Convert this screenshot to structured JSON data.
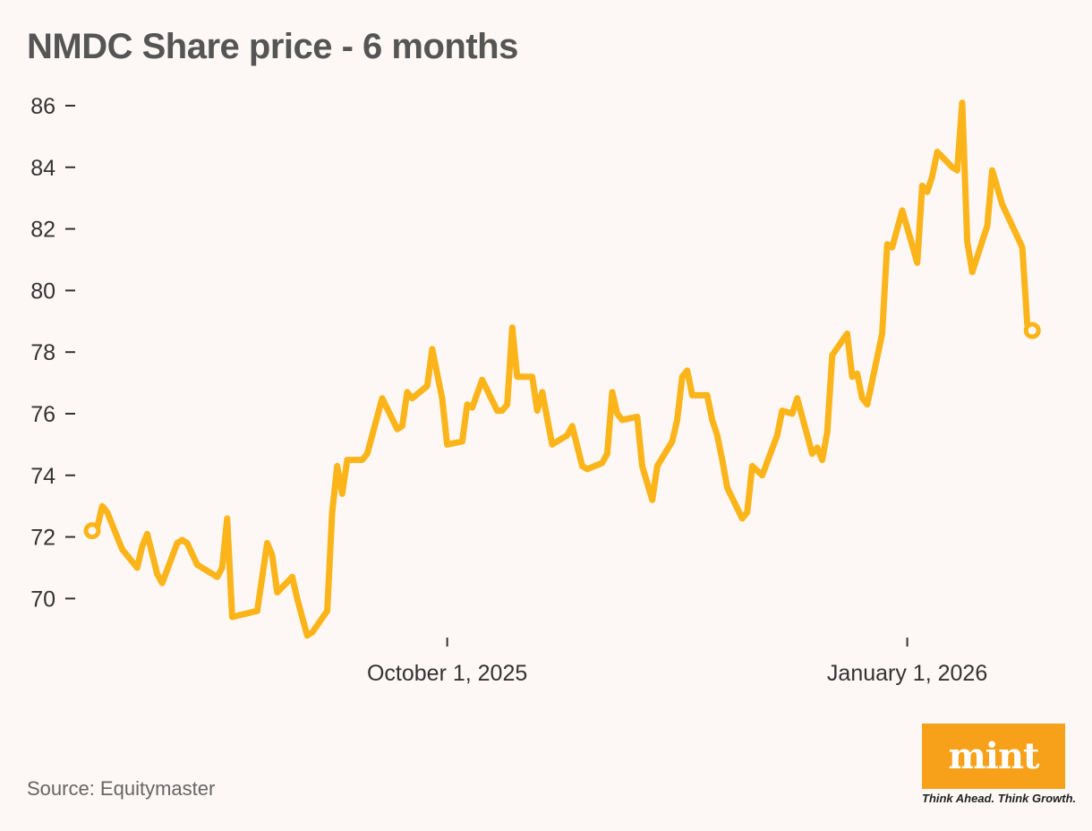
{
  "header": {
    "title": "NMDC Share price - 6 months"
  },
  "footer": {
    "source": "Source: Equitymaster",
    "logo_text": "mint",
    "tagline": "Think Ahead. Think Growth."
  },
  "chart_data": {
    "type": "line",
    "title": "NMDC Share price - 6 months",
    "xlabel": "",
    "ylabel": "",
    "ylim": [
      68.6,
      86.3
    ],
    "y_ticks": [
      70,
      72,
      74,
      76,
      78,
      80,
      82,
      84,
      86
    ],
    "x_ticks": [
      {
        "label": "October 1, 2025",
        "date": "2025-10-01"
      },
      {
        "label": "January 1, 2026",
        "date": "2026-01-01"
      }
    ],
    "x_range": [
      "2025-07-22",
      "2026-01-29"
    ],
    "grid": false,
    "line_color": "#fbb419",
    "series": [
      {
        "points": [
          [
            "2025-07-22",
            72.2
          ],
          [
            "2025-07-23",
            72.3
          ],
          [
            "2025-07-24",
            73.0
          ],
          [
            "2025-07-25",
            72.8
          ],
          [
            "2025-07-28",
            71.6
          ],
          [
            "2025-07-31",
            71.0
          ],
          [
            "2025-08-01",
            71.7
          ],
          [
            "2025-08-02",
            72.1
          ],
          [
            "2025-08-04",
            70.8
          ],
          [
            "2025-08-05",
            70.5
          ],
          [
            "2025-08-08",
            71.8
          ],
          [
            "2025-08-09",
            71.9
          ],
          [
            "2025-08-10",
            71.8
          ],
          [
            "2025-08-12",
            71.1
          ],
          [
            "2025-08-16",
            70.7
          ],
          [
            "2025-08-17",
            71.0
          ],
          [
            "2025-08-18",
            72.6
          ],
          [
            "2025-08-19",
            69.4
          ],
          [
            "2025-08-24",
            69.6
          ],
          [
            "2025-08-26",
            71.8
          ],
          [
            "2025-08-27",
            71.4
          ],
          [
            "2025-08-28",
            70.2
          ],
          [
            "2025-08-31",
            70.7
          ],
          [
            "2025-09-01",
            70.0
          ],
          [
            "2025-09-03",
            68.8
          ],
          [
            "2025-09-04",
            68.9
          ],
          [
            "2025-09-07",
            69.6
          ],
          [
            "2025-09-08",
            72.8
          ],
          [
            "2025-09-09",
            74.3
          ],
          [
            "2025-09-10",
            73.4
          ],
          [
            "2025-09-11",
            74.5
          ],
          [
            "2025-09-14",
            74.5
          ],
          [
            "2025-09-15",
            74.7
          ],
          [
            "2025-09-18",
            76.5
          ],
          [
            "2025-09-21",
            75.5
          ],
          [
            "2025-09-22",
            75.6
          ],
          [
            "2025-09-23",
            76.7
          ],
          [
            "2025-09-24",
            76.5
          ],
          [
            "2025-09-27",
            76.9
          ],
          [
            "2025-09-28",
            78.1
          ],
          [
            "2025-09-30",
            76.5
          ],
          [
            "2025-10-01",
            75.0
          ],
          [
            "2025-10-04",
            75.1
          ],
          [
            "2025-10-05",
            76.3
          ],
          [
            "2025-10-06",
            76.2
          ],
          [
            "2025-10-08",
            77.1
          ],
          [
            "2025-10-11",
            76.1
          ],
          [
            "2025-10-12",
            76.1
          ],
          [
            "2025-10-13",
            76.3
          ],
          [
            "2025-10-14",
            78.8
          ],
          [
            "2025-10-15",
            77.2
          ],
          [
            "2025-10-18",
            77.2
          ],
          [
            "2025-10-19",
            76.1
          ],
          [
            "2025-10-20",
            76.7
          ],
          [
            "2025-10-22",
            75.0
          ],
          [
            "2025-10-25",
            75.3
          ],
          [
            "2025-10-26",
            75.6
          ],
          [
            "2025-10-28",
            74.3
          ],
          [
            "2025-10-29",
            74.2
          ],
          [
            "2025-11-01",
            74.4
          ],
          [
            "2025-11-02",
            74.7
          ],
          [
            "2025-11-03",
            76.7
          ],
          [
            "2025-11-04",
            76.0
          ],
          [
            "2025-11-05",
            75.8
          ],
          [
            "2025-11-08",
            75.9
          ],
          [
            "2025-11-09",
            74.3
          ],
          [
            "2025-11-11",
            73.2
          ],
          [
            "2025-11-12",
            74.3
          ],
          [
            "2025-11-15",
            75.1
          ],
          [
            "2025-11-16",
            75.8
          ],
          [
            "2025-11-17",
            77.2
          ],
          [
            "2025-11-18",
            77.4
          ],
          [
            "2025-11-19",
            76.6
          ],
          [
            "2025-11-22",
            76.6
          ],
          [
            "2025-11-23",
            75.8
          ],
          [
            "2025-11-24",
            75.3
          ],
          [
            "2025-11-25",
            74.5
          ],
          [
            "2025-11-26",
            73.6
          ],
          [
            "2025-11-29",
            72.6
          ],
          [
            "2025-11-30",
            72.8
          ],
          [
            "2025-12-01",
            74.3
          ],
          [
            "2025-12-03",
            74.0
          ],
          [
            "2025-12-06",
            75.3
          ],
          [
            "2025-12-07",
            76.1
          ],
          [
            "2025-12-09",
            76.0
          ],
          [
            "2025-12-10",
            76.5
          ],
          [
            "2025-12-13",
            74.7
          ],
          [
            "2025-12-14",
            74.9
          ],
          [
            "2025-12-15",
            74.5
          ],
          [
            "2025-12-16",
            75.4
          ],
          [
            "2025-12-17",
            77.9
          ],
          [
            "2025-12-20",
            78.6
          ],
          [
            "2025-12-21",
            77.2
          ],
          [
            "2025-12-22",
            77.3
          ],
          [
            "2025-12-23",
            76.5
          ],
          [
            "2025-12-24",
            76.3
          ],
          [
            "2025-12-27",
            78.6
          ],
          [
            "2025-12-28",
            81.5
          ],
          [
            "2025-12-29",
            81.4
          ],
          [
            "2025-12-31",
            82.6
          ],
          [
            "2026-01-03",
            80.9
          ],
          [
            "2026-01-04",
            83.4
          ],
          [
            "2026-01-05",
            83.2
          ],
          [
            "2026-01-06",
            83.7
          ],
          [
            "2026-01-07",
            84.5
          ],
          [
            "2026-01-10",
            84.0
          ],
          [
            "2026-01-11",
            83.9
          ],
          [
            "2026-01-12",
            86.1
          ],
          [
            "2026-01-13",
            81.6
          ],
          [
            "2026-01-14",
            80.6
          ],
          [
            "2026-01-17",
            82.1
          ],
          [
            "2026-01-18",
            83.9
          ],
          [
            "2026-01-20",
            82.8
          ],
          [
            "2026-01-24",
            81.4
          ],
          [
            "2026-01-25",
            78.9
          ],
          [
            "2026-01-26",
            78.7
          ]
        ]
      }
    ]
  }
}
